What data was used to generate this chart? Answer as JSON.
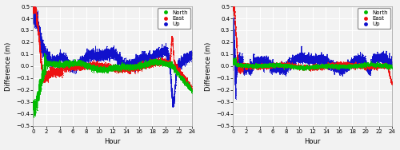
{
  "xlim": [
    0,
    24
  ],
  "ylim": [
    -0.5,
    0.5
  ],
  "xticks": [
    0,
    2,
    4,
    6,
    8,
    10,
    12,
    14,
    16,
    18,
    20,
    22,
    24
  ],
  "yticks": [
    -0.5,
    -0.4,
    -0.3,
    -0.2,
    -0.1,
    0.0,
    0.1,
    0.2,
    0.3,
    0.4,
    0.5
  ],
  "xlabel": "Hour",
  "ylabel": "Difference (m)",
  "color_north": "#00bb00",
  "color_east": "#ee1111",
  "color_up": "#1111cc",
  "legend_labels": [
    "North",
    "East",
    "Up"
  ],
  "background_color": "#f2f2f2",
  "grid_color": "#ffffff",
  "markersize": 1.2,
  "linewidth": 0.6,
  "figsize": [
    5.0,
    1.88
  ],
  "dpi": 100,
  "tick_fontsize": 5,
  "label_fontsize": 6,
  "legend_fontsize": 5
}
